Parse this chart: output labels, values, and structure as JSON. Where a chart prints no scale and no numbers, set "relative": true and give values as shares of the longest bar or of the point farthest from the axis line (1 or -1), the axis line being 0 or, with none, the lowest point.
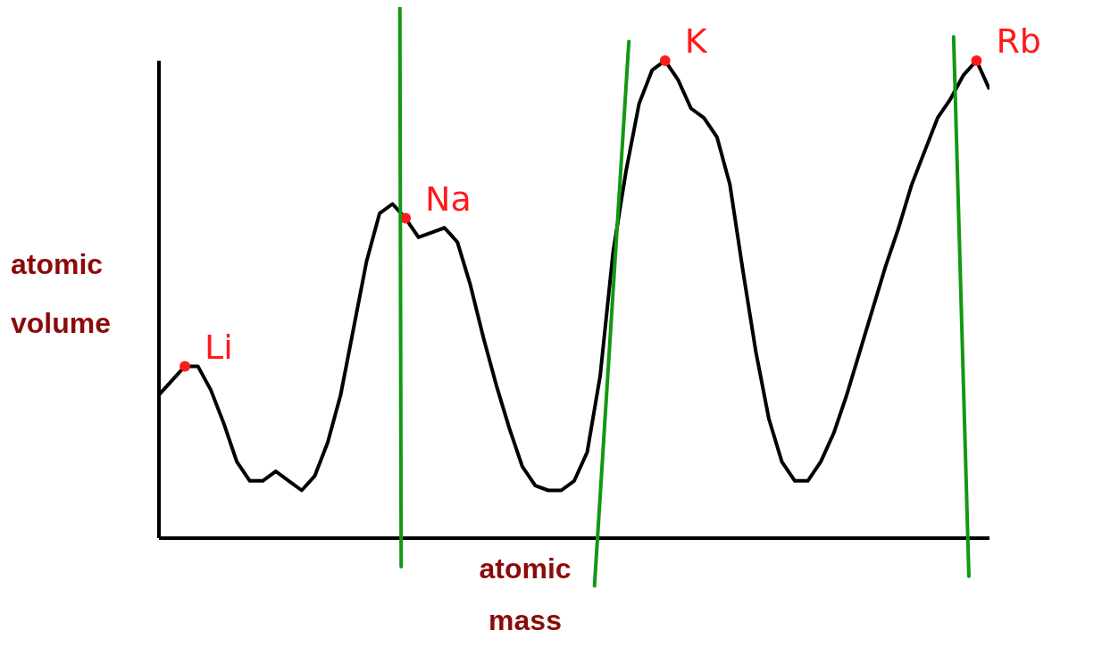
{
  "chart_data": {
    "type": "line",
    "relative": true,
    "xlabel": "atomic mass",
    "ylabel": "atomic volume",
    "categories": [
      null,
      null,
      null,
      null,
      null,
      null,
      null,
      null,
      null,
      null,
      null,
      null,
      null,
      null,
      null,
      null,
      null,
      null,
      null,
      null,
      null,
      null,
      null,
      null,
      null,
      null,
      null,
      null,
      null,
      null,
      null,
      null,
      null,
      null,
      null,
      null,
      null,
      null,
      null,
      null,
      null,
      null,
      null,
      null,
      null,
      null,
      null,
      null,
      null,
      null,
      null,
      null,
      null,
      null,
      null,
      null,
      null,
      null,
      null,
      null,
      null,
      null,
      null,
      null,
      null
    ],
    "series": [
      {
        "color": "#000000",
        "values": [
          0.3,
          0.33,
          0.36,
          0.36,
          0.31,
          0.24,
          0.16,
          0.12,
          0.12,
          0.14,
          0.12,
          0.1,
          0.13,
          0.2,
          0.3,
          0.44,
          0.58,
          0.68,
          0.7,
          0.67,
          0.63,
          0.64,
          0.65,
          0.62,
          0.53,
          0.42,
          0.32,
          0.23,
          0.15,
          0.11,
          0.1,
          0.1,
          0.12,
          0.18,
          0.34,
          0.6,
          0.77,
          0.91,
          0.98,
          1,
          0.96,
          0.9,
          0.88,
          0.84,
          0.74,
          0.56,
          0.39,
          0.25,
          0.16,
          0.12,
          0.12,
          0.16,
          0.22,
          0.3,
          0.39,
          0.48,
          0.57,
          0.65,
          0.74,
          0.81,
          0.88,
          0.92,
          0.97,
          1,
          0.94
        ]
      }
    ],
    "annotations": [
      "Li",
      "Na",
      "K",
      "Rb"
    ],
    "grid": false,
    "legend": false,
    "marker": "none",
    "line_style": "solid"
  }
}
